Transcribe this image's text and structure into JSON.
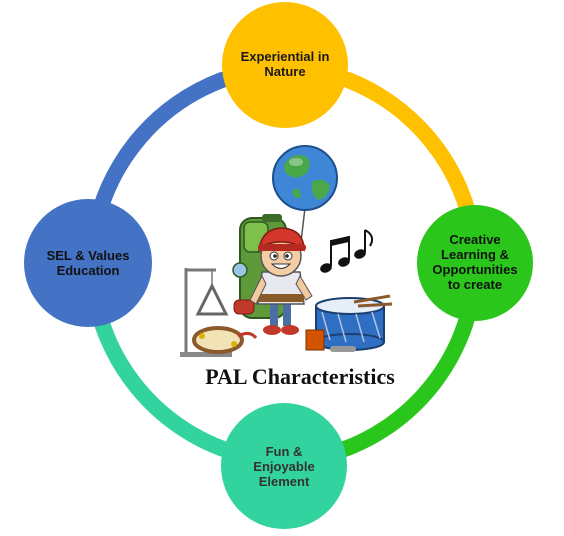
{
  "diagram": {
    "center_title": "PAL Characteristics",
    "nodes": {
      "top": {
        "label": "Experiential in\nNature",
        "color": "#FFC000"
      },
      "right": {
        "label": "Creative\nLearning &\nOpportunities\nto create",
        "color": "#2BC61B"
      },
      "bottom": {
        "label": "Fun &\nEnjoyable\nElement",
        "color": "#33D3A0"
      },
      "left": {
        "label": "SEL & Values\nEducation",
        "color": "#4472C4"
      }
    },
    "ring_colors": {
      "top_to_right": "#FFC000",
      "right_to_bottom": "#2BC61B",
      "bottom_to_left": "#33D3A0",
      "left_to_top": "#4472C4"
    },
    "illustration": {
      "icons": [
        "globe-icon",
        "backpack-icon",
        "child-explorer-icon",
        "music-notes-icon",
        "triangle-instrument-icon",
        "drum-icon",
        "tambourine-icon"
      ]
    }
  }
}
